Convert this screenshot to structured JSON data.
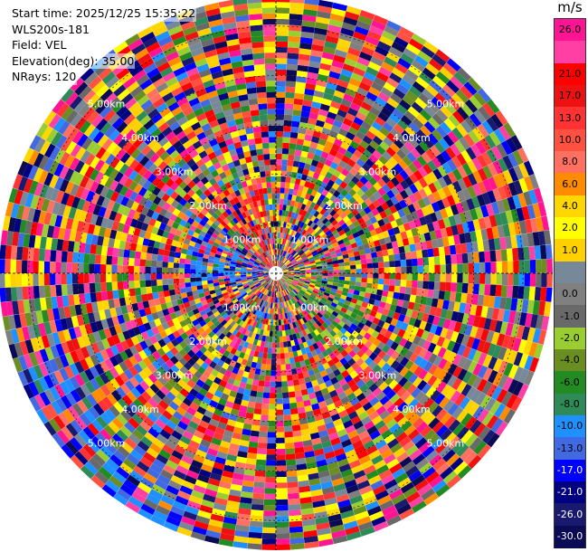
{
  "info": {
    "start_time": "Start time: 2025/12/25 15:35:22",
    "instrument": "WLS200s-181",
    "field": "Field: VEL",
    "elevation": "Elevation(deg): 35.00",
    "nrays": "NRays: 120"
  },
  "colorbar": {
    "unit": "m/s",
    "bins": [
      {
        "label": "26.0",
        "color": "#ff1493"
      },
      {
        "label": "",
        "color": "#ff3fa4"
      },
      {
        "label": "21.0",
        "color": "#ff0000"
      },
      {
        "label": "17.0",
        "color": "#ee1111"
      },
      {
        "label": "13.0",
        "color": "#ff3333"
      },
      {
        "label": "10.0",
        "color": "#ff5040"
      },
      {
        "label": "8.0",
        "color": "#ff7060"
      },
      {
        "label": "6.0",
        "color": "#ff8c00"
      },
      {
        "label": "4.0",
        "color": "#ffd700"
      },
      {
        "label": "2.0",
        "color": "#ffff00"
      },
      {
        "label": "1.0",
        "color": "#ffd000"
      },
      {
        "label": "",
        "color": "#778899"
      },
      {
        "label": "0.0",
        "color": "#808080"
      },
      {
        "label": "-1.0",
        "color": "#696969"
      },
      {
        "label": "-2.0",
        "color": "#9acd32"
      },
      {
        "label": "-4.0",
        "color": "#6b8e23"
      },
      {
        "label": "-6.0",
        "color": "#228b22"
      },
      {
        "label": "-8.0",
        "color": "#2e8b57"
      },
      {
        "label": "-10.0",
        "color": "#1e90ff"
      },
      {
        "label": "-13.0",
        "color": "#4169e1"
      },
      {
        "label": "-17.0",
        "color": "#0000ff"
      },
      {
        "label": "-21.0",
        "color": "#000080"
      },
      {
        "label": "-26.0",
        "color": "#191970"
      },
      {
        "label": "-30.0",
        "color": "#0b0b55"
      }
    ]
  },
  "chart_data": {
    "type": "heatmap",
    "projection": "polar-ppi",
    "field": "VEL",
    "nrays": 120,
    "range_rings_km": [
      1.0,
      2.0,
      3.0,
      4.0,
      5.0
    ],
    "ring_labels": [
      "1.00km",
      "2.00km",
      "3.00km",
      "4.00km",
      "5.00km"
    ],
    "max_range_km": 5.6,
    "vmin": -30.0,
    "vmax": 26.0
  }
}
